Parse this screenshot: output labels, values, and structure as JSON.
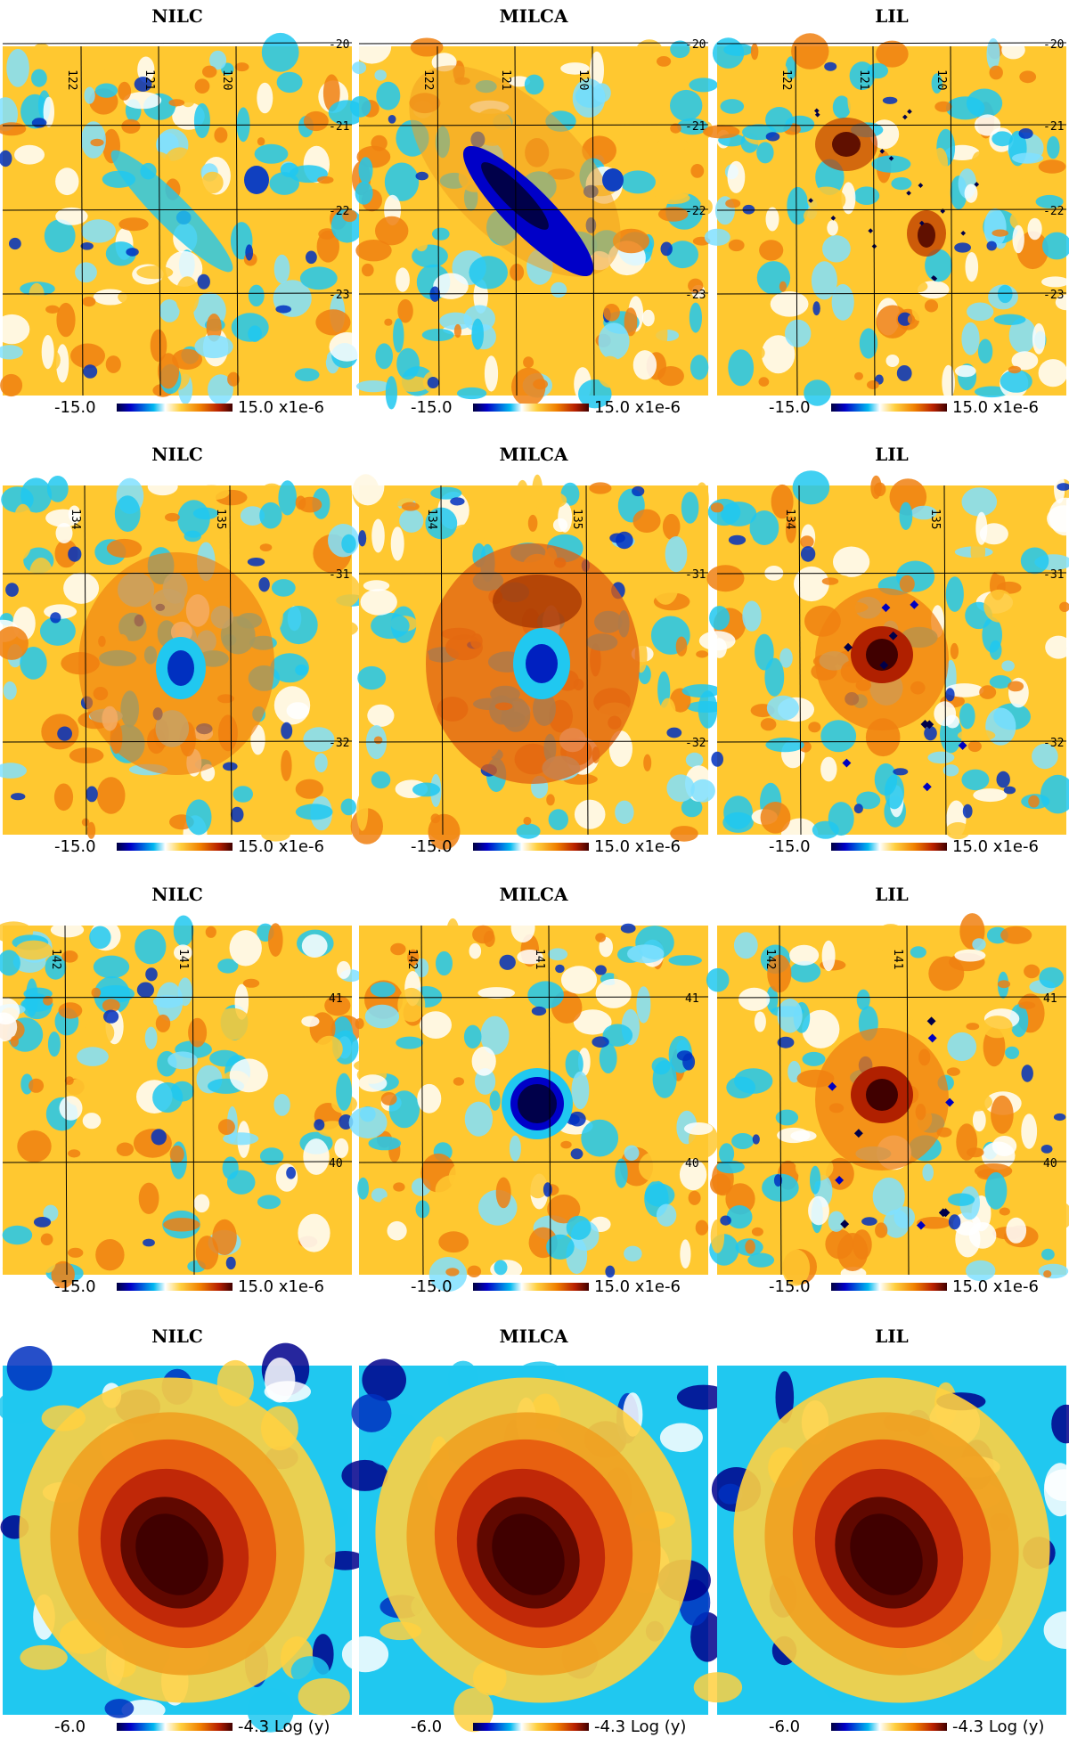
{
  "method_titles": [
    "NILC",
    "MILCA",
    "LIL"
  ],
  "rows": [
    {
      "x_labels": [
        "122",
        "121",
        "120"
      ],
      "y_labels": [
        "-20",
        "-21",
        "-22",
        "-23"
      ],
      "colorbar": {
        "min": "-15.0",
        "max": "15.0",
        "unit": "x1e-6"
      },
      "features": [
        "weak-stripe",
        "strong-stripe-dark",
        "red-blobs-points"
      ]
    },
    {
      "x_labels": [
        "134",
        "135"
      ],
      "y_labels": [
        "-31",
        "-32"
      ],
      "colorbar": {
        "min": "-15.0",
        "max": "15.0",
        "unit": "x1e-6"
      },
      "features": [
        "ring-hole",
        "ring-hole-strong",
        "red-core-points"
      ]
    },
    {
      "x_labels": [
        "142",
        "141"
      ],
      "y_labels": [
        "41",
        "40"
      ],
      "colorbar": {
        "min": "-15.0",
        "max": "15.0",
        "unit": "x1e-6"
      },
      "features": [
        "noise",
        "dark-hole",
        "red-core-points"
      ]
    },
    {
      "x_labels": [],
      "y_labels": [],
      "colorbar": {
        "min": "-6.0",
        "max": "-4.3",
        "unit": "Log (y)"
      },
      "features": [
        "cluster",
        "cluster",
        "cluster"
      ]
    }
  ],
  "colors": {
    "deep_blue": "#00008c",
    "cyan": "#20c8f0",
    "yellow": "#ffc830",
    "orange": "#f08010",
    "dark_red": "#400000"
  }
}
